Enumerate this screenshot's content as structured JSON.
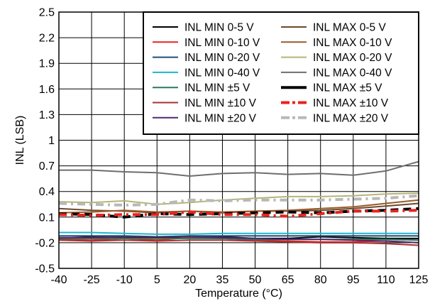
{
  "chart_data": {
    "type": "line",
    "xlabel": "Temperature (°C)",
    "ylabel": "INL (LSB)",
    "x": [
      -40,
      -25,
      -10,
      5,
      20,
      35,
      50,
      65,
      80,
      95,
      110,
      125
    ],
    "xlim": [
      -40,
      125
    ],
    "ylim": [
      -0.5,
      2.5
    ],
    "yticks": [
      -0.5,
      -0.2,
      0.1,
      0.4,
      0.7,
      1,
      1.3,
      1.6,
      1.9,
      2.2,
      2.5
    ],
    "ytick_labels": [
      "-0.5",
      "-0.2",
      "0.1",
      "0.4",
      "0.7",
      "1",
      "1.3",
      "1.6",
      "1.9",
      "2.2",
      "2.5"
    ],
    "grid": true,
    "legend_position": "top-right",
    "series": [
      {
        "name": "INL MIN 0-5 V",
        "color": "#000000",
        "style": "solid",
        "width": 2,
        "values": [
          -0.15,
          -0.13,
          -0.14,
          -0.14,
          -0.14,
          -0.13,
          -0.15,
          -0.15,
          -0.13,
          -0.14,
          -0.15,
          -0.15
        ]
      },
      {
        "name": "INL MIN 0-10 V",
        "color": "#e8231e",
        "style": "solid",
        "width": 2,
        "values": [
          -0.16,
          -0.17,
          -0.15,
          -0.17,
          -0.14,
          -0.15,
          -0.17,
          -0.18,
          -0.19,
          -0.19,
          -0.18,
          -0.2
        ]
      },
      {
        "name": "INL MIN 0-20 V",
        "color": "#1f4e79",
        "style": "solid",
        "width": 2,
        "values": [
          -0.12,
          -0.12,
          -0.12,
          -0.13,
          -0.12,
          -0.12,
          -0.12,
          -0.12,
          -0.12,
          -0.12,
          -0.12,
          -0.12
        ]
      },
      {
        "name": "INL MIN 0-40 V",
        "color": "#1fb6cc",
        "style": "solid",
        "width": 2,
        "values": [
          -0.08,
          -0.08,
          -0.09,
          -0.1,
          -0.1,
          -0.09,
          -0.09,
          -0.09,
          -0.09,
          -0.09,
          -0.09,
          -0.09
        ]
      },
      {
        "name": "INL MIN ±5 V",
        "color": "#2a7a5a",
        "style": "solid",
        "width": 2,
        "values": [
          -0.15,
          -0.15,
          -0.15,
          -0.15,
          -0.15,
          -0.15,
          -0.16,
          -0.16,
          -0.16,
          -0.16,
          -0.16,
          -0.17
        ]
      },
      {
        "name": "INL MIN ±10 V",
        "color": "#a83232",
        "style": "solid",
        "width": 2,
        "values": [
          -0.17,
          -0.18,
          -0.17,
          -0.18,
          -0.17,
          -0.17,
          -0.18,
          -0.19,
          -0.2,
          -0.2,
          -0.21,
          -0.23
        ]
      },
      {
        "name": "INL MIN ±20 V",
        "color": "#4e2a6e",
        "style": "solid",
        "width": 2,
        "values": [
          -0.14,
          -0.14,
          -0.13,
          -0.13,
          -0.13,
          -0.14,
          -0.15,
          -0.16,
          -0.16,
          -0.17,
          -0.18,
          -0.2
        ]
      },
      {
        "name": "INL MAX 0-5 V",
        "color": "#6b4a2a",
        "style": "solid",
        "width": 2,
        "values": [
          0.2,
          0.18,
          0.17,
          0.15,
          0.17,
          0.15,
          0.17,
          0.17,
          0.18,
          0.2,
          0.23,
          0.26
        ]
      },
      {
        "name": "INL MAX 0-10 V",
        "color": "#9b5a2a",
        "style": "solid",
        "width": 2,
        "values": [
          0.15,
          0.16,
          0.18,
          0.16,
          0.17,
          0.16,
          0.17,
          0.18,
          0.2,
          0.22,
          0.26,
          0.3
        ]
      },
      {
        "name": "INL MAX 0-20 V",
        "color": "#b5b576",
        "style": "solid",
        "width": 2,
        "values": [
          0.28,
          0.27,
          0.29,
          0.25,
          0.27,
          0.3,
          0.32,
          0.34,
          0.34,
          0.35,
          0.37,
          0.38
        ]
      },
      {
        "name": "INL MAX 0-40 V",
        "color": "#6e6e6e",
        "style": "solid",
        "width": 2,
        "values": [
          0.65,
          0.65,
          0.63,
          0.62,
          0.58,
          0.61,
          0.62,
          0.6,
          0.61,
          0.59,
          0.64,
          0.75
        ]
      },
      {
        "name": "INL MAX ±5 V",
        "color": "#000000",
        "style": "dashed",
        "width": 4,
        "values": [
          0.14,
          0.13,
          0.1,
          0.14,
          0.13,
          0.14,
          0.15,
          0.16,
          0.15,
          0.17,
          0.18,
          0.2
        ]
      },
      {
        "name": "INL MAX ±10 V",
        "color": "#e8231e",
        "style": "dashdot",
        "width": 4,
        "values": [
          0.13,
          0.12,
          0.13,
          0.13,
          0.16,
          0.13,
          0.13,
          0.11,
          0.14,
          0.17,
          0.17,
          0.18
        ]
      },
      {
        "name": "INL MAX ±20 V",
        "color": "#b8b8b8",
        "style": "dashdot",
        "width": 4,
        "values": [
          0.26,
          0.25,
          0.24,
          0.25,
          0.3,
          0.29,
          0.3,
          0.3,
          0.3,
          0.31,
          0.32,
          0.35
        ]
      }
    ]
  }
}
